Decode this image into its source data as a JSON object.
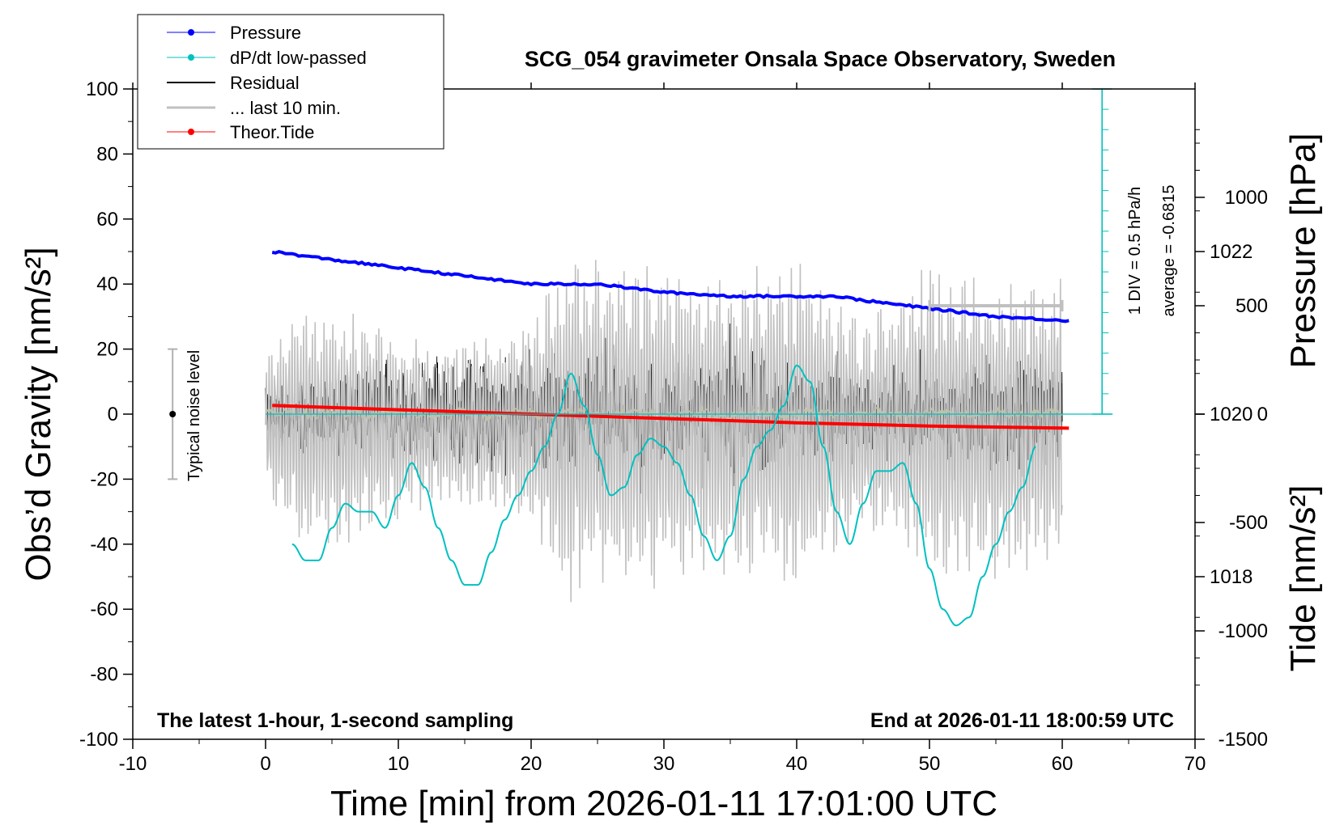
{
  "chart_data": {
    "type": "line",
    "title": "SCG_054 gravimeter Onsala Space Observatory, Sweden",
    "xlabel": "Time [min] from 2026-01-11 17:01:00 UTC",
    "ylabel_left": "Obs’d Gravity [nm/s²]",
    "ylabel_right_top": "Pressure [hPa]",
    "ylabel_right_bottom": "Tide [nm/s²]",
    "xlim": [
      -10,
      70
    ],
    "ylim": [
      -100,
      100
    ],
    "pressure_lim": [
      1016,
      1024
    ],
    "tide_lim": [
      -1500,
      1500
    ],
    "x_ticks": [
      -10,
      0,
      10,
      20,
      30,
      40,
      50,
      60,
      70
    ],
    "x_tick_labels": [
      "-10",
      "0",
      "10",
      "20",
      "30",
      "40",
      "50",
      "60",
      "70"
    ],
    "y_ticks": [
      -100,
      -80,
      -60,
      -40,
      -20,
      0,
      20,
      40,
      60,
      80,
      100
    ],
    "y_tick_labels": [
      "-100",
      "-80",
      "-60",
      "-40",
      "-20",
      "0",
      "20",
      "40",
      "60",
      "80",
      "100"
    ],
    "pressure_ticks": [
      1018,
      1020,
      1022
    ],
    "pressure_tick_labels": [
      "1018",
      "1020",
      "1022"
    ],
    "tide_ticks": [
      -1500,
      -1000,
      -500,
      0,
      500,
      1000
    ],
    "tide_tick_labels": [
      "-1500",
      "-1000",
      "-500",
      "0",
      "500",
      "1000"
    ],
    "annotation_left": "The latest 1-hour, 1-second sampling",
    "annotation_right": "End at 2026-01-11 18:00:59 UTC",
    "dpdt_scale": "1 DIV = 0.5 hPa/h",
    "dpdt_average": "average = -0.6815",
    "noise_label": "Typical noise level",
    "noise_level": {
      "x": -7,
      "center": 0,
      "range": [
        -20,
        20
      ]
    },
    "last10_range": [
      50,
      60
    ],
    "dpdt_baseline": 1020,
    "legend": [
      {
        "label": "Pressure",
        "color": "#0000ff"
      },
      {
        "label": "dP/dt low-passed",
        "color": "#00c0c0"
      },
      {
        "label": "Residual",
        "color": "#000000"
      },
      {
        "label": "... last 10 min.",
        "color": "#c0c0c0"
      },
      {
        "label": "Theor.Tide",
        "color": "#ff0000"
      }
    ],
    "series": [
      {
        "name": "Pressure",
        "axis": "pressure",
        "x": [
          0.5,
          5,
          10,
          15,
          20,
          25,
          30,
          35,
          40,
          43,
          45,
          50,
          55,
          60.5
        ],
        "y": [
          1022,
          1021.9,
          1021.8,
          1021.7,
          1021.6,
          1021.6,
          1021.5,
          1021.45,
          1021.45,
          1021.45,
          1021.4,
          1021.3,
          1021.2,
          1021.15
        ]
      },
      {
        "name": "dP/dt low-passed",
        "axis": "pressure",
        "x": [
          2,
          3,
          4,
          5,
          6,
          7,
          8,
          9,
          10,
          11,
          12,
          13,
          14,
          15,
          16,
          17,
          18,
          19,
          20,
          21,
          22,
          23,
          24,
          25,
          26,
          27,
          28,
          29,
          30,
          31,
          32,
          33,
          34,
          35,
          36,
          37,
          38,
          39,
          40,
          41,
          42,
          43,
          44,
          45,
          46,
          47,
          48,
          49,
          50,
          51,
          52,
          53,
          54,
          55,
          56,
          57,
          58
        ],
        "y": [
          1018.4,
          1018.2,
          1018.2,
          1018.6,
          1018.9,
          1018.8,
          1018.8,
          1018.6,
          1019,
          1019.4,
          1019.1,
          1018.6,
          1018.2,
          1017.9,
          1017.9,
          1018.3,
          1018.7,
          1019,
          1019.3,
          1019.6,
          1020,
          1020.5,
          1020.1,
          1019.5,
          1019,
          1019.1,
          1019.5,
          1019.7,
          1019.6,
          1019.4,
          1019,
          1018.5,
          1018.2,
          1018.5,
          1019.2,
          1019.6,
          1019.8,
          1020.1,
          1020.6,
          1020.4,
          1019.6,
          1018.8,
          1018.4,
          1018.9,
          1019.3,
          1019.3,
          1019.4,
          1018.9,
          1018.1,
          1017.6,
          1017.4,
          1017.5,
          1018,
          1018.4,
          1018.8,
          1019.1,
          1019.6
        ]
      },
      {
        "name": "Residual",
        "axis": "gravity",
        "x": [
          0,
          60
        ],
        "y": [
          0,
          0
        ],
        "envelope": {
          "x": [
            0,
            10,
            20,
            25,
            30,
            35,
            40,
            45,
            50,
            55,
            60
          ],
          "amplitude": [
            10,
            18,
            20,
            22,
            20,
            24,
            20,
            17,
            18,
            20,
            17
          ]
        }
      },
      {
        "name": "... last 10 min.",
        "axis": "tide",
        "x": [
          50,
          60
        ],
        "y": [
          0,
          0
        ],
        "envelope": {
          "x": [
            0,
            3,
            6,
            9,
            12,
            15,
            20,
            23,
            30,
            35,
            40,
            45,
            50,
            55,
            60
          ],
          "amplitude": [
            300,
            550,
            500,
            450,
            350,
            350,
            450,
            750,
            700,
            650,
            700,
            450,
            700,
            650,
            650
          ]
        }
      },
      {
        "name": "Theor.Tide",
        "axis": "tide",
        "x": [
          0.5,
          10,
          20,
          30,
          40,
          50,
          60.5
        ],
        "y": [
          40,
          20,
          0,
          -20,
          -40,
          -55,
          -65
        ]
      }
    ]
  }
}
